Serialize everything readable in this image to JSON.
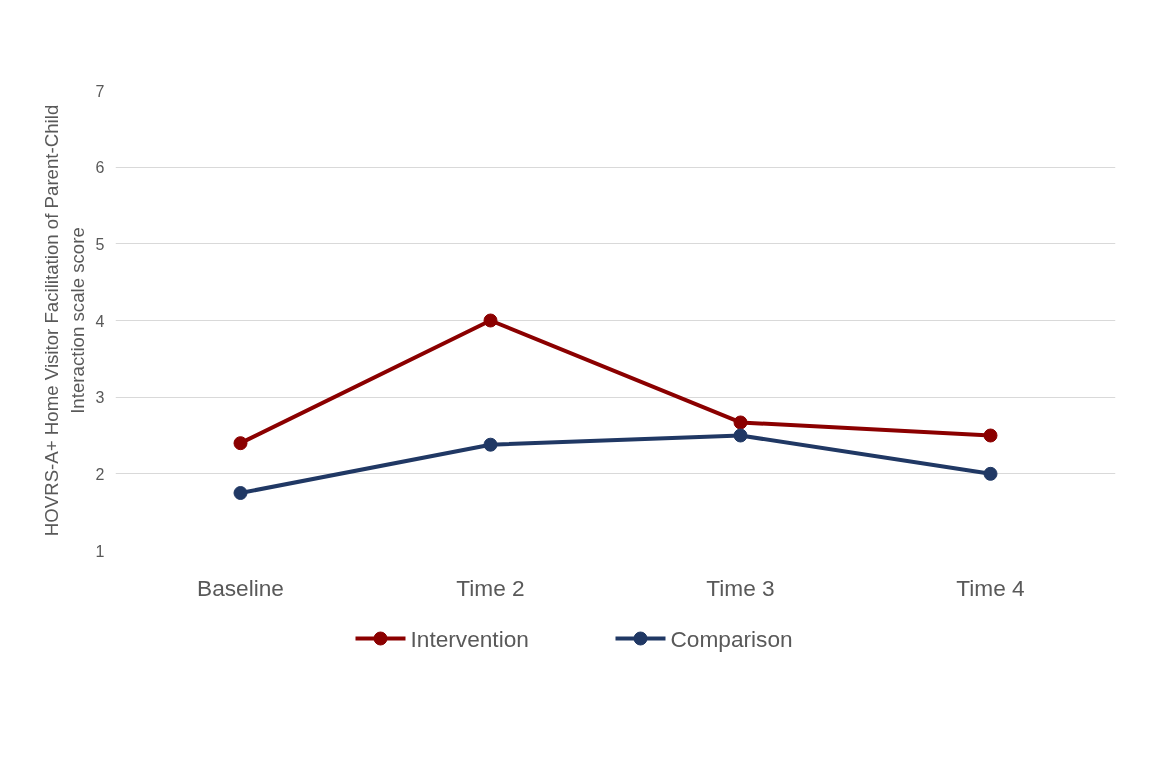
{
  "chart_data": {
    "type": "line",
    "ylabel": "HOVRS-A+ Home Visitor Facilitation of Parent-Child Interaction scale score",
    "categories": [
      "Baseline",
      "Time 2",
      "Time 3",
      "Time 4"
    ],
    "series": [
      {
        "name": "Intervention",
        "color": "#8b0000",
        "values": [
          2.4,
          4.0,
          2.67,
          2.5
        ]
      },
      {
        "name": "Comparison",
        "color": "#203864",
        "values": [
          1.75,
          2.38,
          2.5,
          2.0
        ]
      }
    ],
    "ylim": [
      1,
      7
    ],
    "yticks": [
      1,
      2,
      3,
      4,
      5,
      6,
      7
    ],
    "grid": "y",
    "legend": "bottom",
    "marker": "circle",
    "line_style": "solid"
  }
}
